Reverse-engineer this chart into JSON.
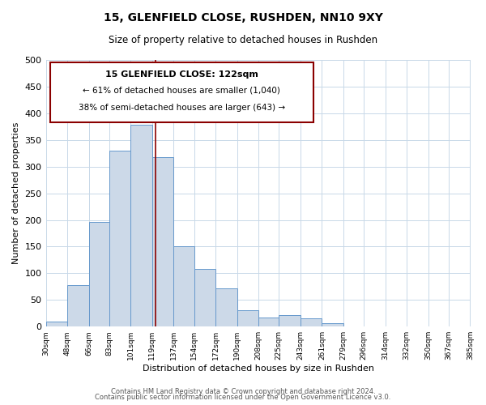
{
  "title": "15, GLENFIELD CLOSE, RUSHDEN, NN10 9XY",
  "subtitle": "Size of property relative to detached houses in Rushden",
  "xlabel": "Distribution of detached houses by size in Rushden",
  "ylabel": "Number of detached properties",
  "bar_edges": [
    30,
    48,
    66,
    83,
    101,
    119,
    137,
    154,
    172,
    190,
    208,
    225,
    243,
    261,
    279,
    296,
    314,
    332,
    350,
    367,
    385
  ],
  "bar_heights": [
    10,
    78,
    197,
    330,
    378,
    318,
    150,
    108,
    72,
    30,
    17,
    22,
    15,
    7,
    0,
    0,
    0,
    0,
    0,
    0
  ],
  "bar_color": "#ccd9e8",
  "bar_edge_color": "#6699cc",
  "property_line_x": 122,
  "property_line_color": "#8b0000",
  "annotation_title": "15 GLENFIELD CLOSE: 122sqm",
  "annotation_line1": "← 61% of detached houses are smaller (1,040)",
  "annotation_line2": "38% of semi-detached houses are larger (643) →",
  "annotation_box_color": "#8b0000",
  "ylim": [
    0,
    500
  ],
  "yticks": [
    0,
    50,
    100,
    150,
    200,
    250,
    300,
    350,
    400,
    450,
    500
  ],
  "tick_labels": [
    "30sqm",
    "48sqm",
    "66sqm",
    "83sqm",
    "101sqm",
    "119sqm",
    "137sqm",
    "154sqm",
    "172sqm",
    "190sqm",
    "208sqm",
    "225sqm",
    "243sqm",
    "261sqm",
    "279sqm",
    "296sqm",
    "314sqm",
    "332sqm",
    "350sqm",
    "367sqm",
    "385sqm"
  ],
  "footer1": "Contains HM Land Registry data © Crown copyright and database right 2024.",
  "footer2": "Contains public sector information licensed under the Open Government Licence v3.0.",
  "bg_color": "#ffffff",
  "grid_color": "#c8d8e8"
}
